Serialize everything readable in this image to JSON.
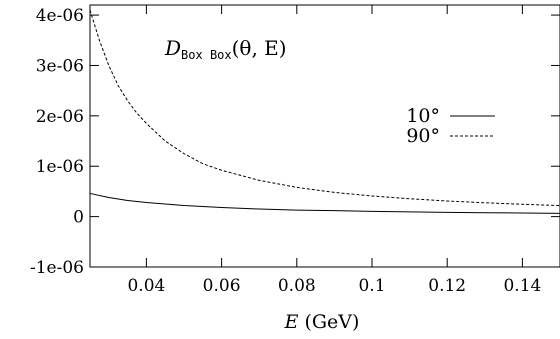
{
  "chart_data": {
    "type": "line",
    "annotation": {
      "symbol": "D",
      "subscript": "Box Box",
      "arguments": "(θ, E)"
    },
    "xlabel": {
      "variable": "E",
      "unit": "(GeV)"
    },
    "ylabel": "",
    "xlim": [
      0.025,
      0.15
    ],
    "ylim": [
      -1e-06,
      4.2e-06
    ],
    "x_ticks": [
      0.04,
      0.06,
      0.08,
      0.1,
      0.12,
      0.14
    ],
    "x_tick_labels": [
      "0.04",
      "0.06",
      "0.08",
      "0.1",
      "0.12",
      "0.14"
    ],
    "y_ticks": [
      -1e-06,
      0,
      1e-06,
      2e-06,
      3e-06,
      4e-06
    ],
    "y_tick_labels": [
      "-1e-06",
      "0",
      "1e-06",
      "2e-06",
      "3e-06",
      "4e-06"
    ],
    "grid": false,
    "legend_position": "right",
    "series": [
      {
        "name": "10°",
        "style": "solid",
        "color": "#000000",
        "x": [
          0.025,
          0.03,
          0.035,
          0.04,
          0.05,
          0.06,
          0.07,
          0.08,
          0.09,
          0.1,
          0.11,
          0.12,
          0.13,
          0.14,
          0.15
        ],
        "y": [
          4.6e-07,
          3.8e-07,
          3.2e-07,
          2.8e-07,
          2.2e-07,
          1.8e-07,
          1.5e-07,
          1.3e-07,
          1.2e-07,
          1.05e-07,
          9.5e-08,
          8.5e-08,
          7.8e-08,
          7.2e-08,
          6.5e-08
        ]
      },
      {
        "name": "90°",
        "style": "dashed",
        "color": "#000000",
        "x": [
          0.025,
          0.0275,
          0.03,
          0.0325,
          0.035,
          0.0375,
          0.04,
          0.045,
          0.05,
          0.055,
          0.06,
          0.07,
          0.08,
          0.09,
          0.1,
          0.11,
          0.12,
          0.13,
          0.14,
          0.15
        ],
        "y": [
          4.1e-06,
          3.5e-06,
          3e-06,
          2.6e-06,
          2.3e-06,
          2.05e-06,
          1.85e-06,
          1.5e-06,
          1.25e-06,
          1.05e-06,
          9.2e-07,
          7.2e-07,
          5.8e-07,
          4.8e-07,
          4.1e-07,
          3.55e-07,
          3.1e-07,
          2.75e-07,
          2.45e-07,
          2.2e-07
        ]
      }
    ]
  }
}
